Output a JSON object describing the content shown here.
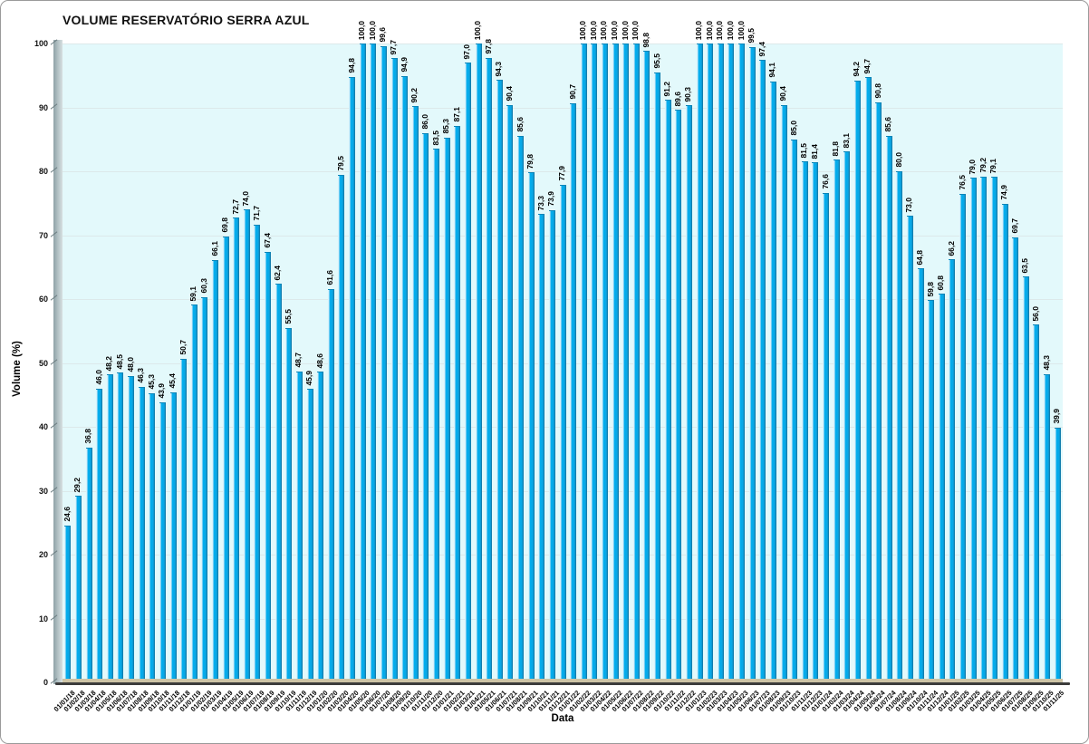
{
  "chart_data": {
    "type": "bar",
    "title": "VOLUME RESERVATÓRIO SERRA AZUL",
    "xlabel": "Data",
    "ylabel": "Volume (%)",
    "ylim": [
      0,
      100
    ],
    "y_ticks": [
      0,
      10,
      20,
      30,
      40,
      50,
      60,
      70,
      80,
      90,
      100
    ],
    "grid": true,
    "legend": "none",
    "decimal_separator": ",",
    "colors": {
      "bar": "#00aeef",
      "bar_highlight": "#d6f1fb",
      "bar_shadow": "#16719d",
      "plot_background": "#e3f9fb",
      "wall": "#b7c5c8",
      "floor": "#cdc4a6",
      "gridline": "#dce9ea",
      "text": "#000000"
    },
    "categories": [
      "01/01/18",
      "01/02/18",
      "01/03/18",
      "01/04/18",
      "01/05/18",
      "01/06/18",
      "01/07/18",
      "01/08/18",
      "01/09/18",
      "01/10/18",
      "01/11/18",
      "01/12/18",
      "01/01/19",
      "01/02/19",
      "01/03/19",
      "01/04/19",
      "01/05/19",
      "01/06/19",
      "01/07/19",
      "01/08/19",
      "01/09/19",
      "01/10/19",
      "01/11/19",
      "01/12/19",
      "01/01/20",
      "01/02/20",
      "01/03/20",
      "01/04/20",
      "01/05/20",
      "01/06/20",
      "01/07/20",
      "01/08/20",
      "01/09/20",
      "01/10/20",
      "01/11/20",
      "01/12/20",
      "01/01/21",
      "01/02/21",
      "01/03/21",
      "01/04/21",
      "01/05/21",
      "01/06/21",
      "01/07/21",
      "01/08/21",
      "01/09/21",
      "01/10/21",
      "01/11/21",
      "01/12/21",
      "01/01/22",
      "01/02/22",
      "01/03/22",
      "01/04/22",
      "01/05/22",
      "01/06/22",
      "01/07/22",
      "01/08/22",
      "01/09/22",
      "01/10/22",
      "01/11/22",
      "01/12/22",
      "01/01/23",
      "01/02/23",
      "01/03/23",
      "01/04/23",
      "01/05/23",
      "01/06/23",
      "01/07/23",
      "01/08/23",
      "01/09/23",
      "01/10/23",
      "01/11/23",
      "01/12/23",
      "01/01/24",
      "01/02/24",
      "01/03/24",
      "01/04/24",
      "01/05/24",
      "01/06/24",
      "01/07/24",
      "01/08/24",
      "01/09/24",
      "01/10/24",
      "01/11/24",
      "01/12/24",
      "01/01/25",
      "01/02/25",
      "01/03/25",
      "01/04/25",
      "01/05/25",
      "01/06/25",
      "01/07/25",
      "01/08/25",
      "01/09/25",
      "01/10/25",
      "01/11/25"
    ],
    "values": [
      24.6,
      29.2,
      36.8,
      46.0,
      48.2,
      48.5,
      48.0,
      46.3,
      45.3,
      43.9,
      45.4,
      50.7,
      59.1,
      60.3,
      66.1,
      69.8,
      72.7,
      74.0,
      71.7,
      67.4,
      62.4,
      55.5,
      48.7,
      45.9,
      48.6,
      61.6,
      79.5,
      94.8,
      100.0,
      100.0,
      99.6,
      97.7,
      94.9,
      90.2,
      86.0,
      83.5,
      85.3,
      87.1,
      97.0,
      100.0,
      97.8,
      94.3,
      90.4,
      85.6,
      79.8,
      73.3,
      73.9,
      77.9,
      90.7,
      100.0,
      100.0,
      100.0,
      100.0,
      100.0,
      100.0,
      98.8,
      95.5,
      91.2,
      89.6,
      90.3,
      100.0,
      100.0,
      100.0,
      100.0,
      100.0,
      99.5,
      97.4,
      94.1,
      90.4,
      85.0,
      81.5,
      81.4,
      76.6,
      81.8,
      83.1,
      94.2,
      94.7,
      90.8,
      85.6,
      80.0,
      73.0,
      64.8,
      59.8,
      60.8,
      66.2,
      76.5,
      79.0,
      79.2,
      79.1,
      74.9,
      69.7,
      63.5,
      56.0,
      48.3,
      39.9
    ]
  }
}
